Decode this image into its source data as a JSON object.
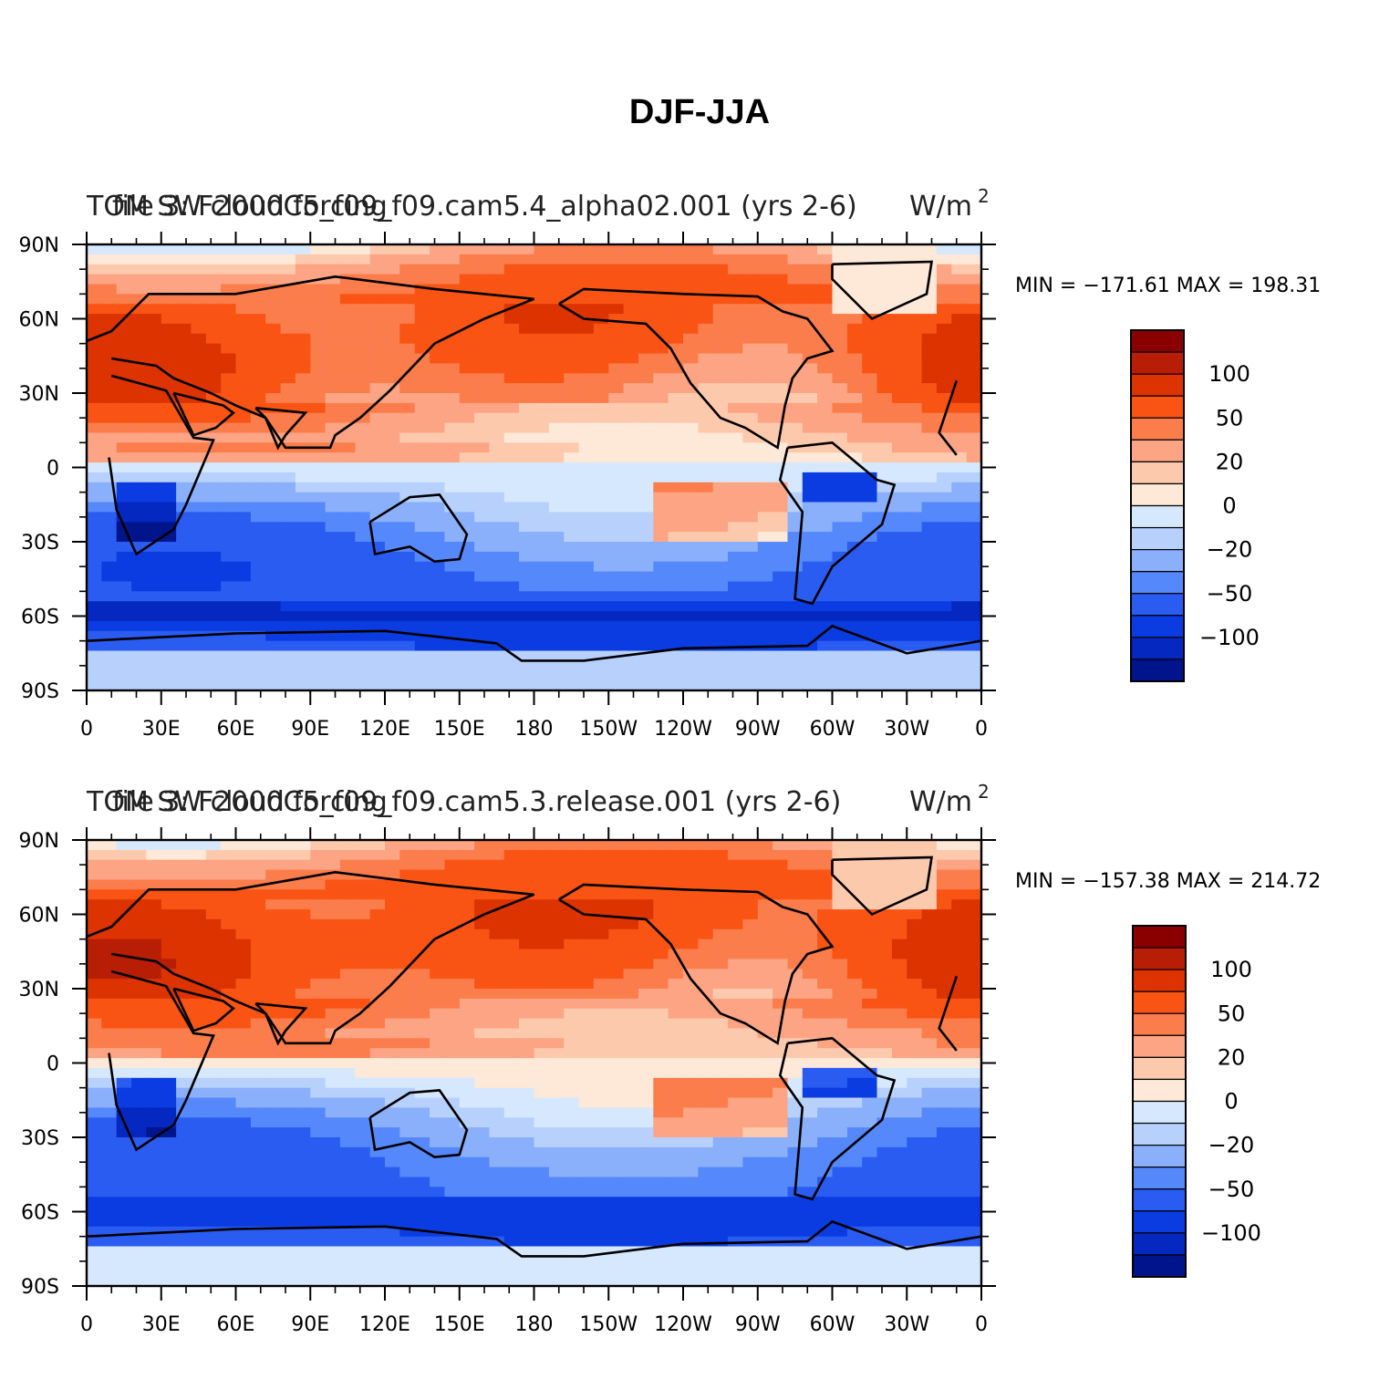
{
  "figure": {
    "title": "DJF-JJA"
  },
  "chart_data": [
    {
      "type": "heatmap",
      "title_left": "file 3: F2000C5_f09_f09.cam5.4_alpha02.001 (yrs 2-6)",
      "title_left_overlay": "TOM SW cloud forcing",
      "title_units": "W/m",
      "title_units_sup": "2",
      "stats": "MIN = −171.61  MAX = 198.31",
      "min": -171.61,
      "max": 198.31,
      "x_tick_labels": [
        "0",
        "30E",
        "60E",
        "90E",
        "120E",
        "150E",
        "180",
        "150W",
        "120W",
        "90W",
        "60W",
        "30W",
        "0"
      ],
      "x_ticks_lon": [
        0,
        30,
        60,
        90,
        120,
        150,
        180,
        210,
        240,
        270,
        300,
        330,
        360
      ],
      "y_tick_labels": [
        "90N",
        "60N",
        "30N",
        "0",
        "30S",
        "60S",
        "90S"
      ],
      "y_ticks_lat": [
        90,
        60,
        30,
        0,
        -30,
        -60,
        -90
      ],
      "xlim": [
        0,
        360
      ],
      "ylim": [
        -90,
        90
      ],
      "colorbar": {
        "colors": [
          "#8a0000",
          "#b81e06",
          "#dc3300",
          "#f95414",
          "#fb7d4c",
          "#fca483",
          "#fdc9ad",
          "#fee8d8",
          "#d5e8fd",
          "#b7d1fc",
          "#8ab0fb",
          "#5588fa",
          "#2a5cf2",
          "#0a3ce2",
          "#0428c0",
          "#00148c"
        ],
        "labels": [
          {
            "text": "100",
            "boundary": 2
          },
          {
            "text": "50",
            "boundary": 4
          },
          {
            "text": "20",
            "boundary": 6
          },
          {
            "text": "0",
            "boundary": 8
          },
          {
            "text": "−20",
            "boundary": 10
          },
          {
            "text": "−50",
            "boundary": 12
          },
          {
            "text": "−100",
            "boundary": 14
          }
        ]
      }
    },
    {
      "type": "heatmap",
      "title_left": "file 3: F2000C5_f09_f09.cam5.3.release.001 (yrs 2-6)",
      "title_left_overlay": "TOM SW cloud forcing",
      "title_units": "W/m",
      "title_units_sup": "2",
      "stats": "MIN = −157.38  MAX = 214.72",
      "min": -157.38,
      "max": 214.72,
      "x_tick_labels": [
        "0",
        "30E",
        "60E",
        "90E",
        "120E",
        "150E",
        "180",
        "150W",
        "120W",
        "90W",
        "60W",
        "30W",
        "0"
      ],
      "x_ticks_lon": [
        0,
        30,
        60,
        90,
        120,
        150,
        180,
        210,
        240,
        270,
        300,
        330,
        360
      ],
      "y_tick_labels": [
        "90N",
        "60N",
        "30N",
        "0",
        "30S",
        "60S",
        "90S"
      ],
      "y_ticks_lat": [
        90,
        60,
        30,
        0,
        -30,
        -60,
        -90
      ],
      "xlim": [
        0,
        360
      ],
      "ylim": [
        -90,
        90
      ],
      "colorbar": {
        "colors": [
          "#8a0000",
          "#b81e06",
          "#dc3300",
          "#f95414",
          "#fb7d4c",
          "#fca483",
          "#fdc9ad",
          "#fee8d8",
          "#d5e8fd",
          "#b7d1fc",
          "#8ab0fb",
          "#5588fa",
          "#2a5cf2",
          "#0a3ce2",
          "#0428c0",
          "#00148c"
        ],
        "labels": [
          {
            "text": "100",
            "boundary": 2
          },
          {
            "text": "50",
            "boundary": 4
          },
          {
            "text": "20",
            "boundary": 6
          },
          {
            "text": "0",
            "boundary": 8
          },
          {
            "text": "−20",
            "boundary": 10
          },
          {
            "text": "−50",
            "boundary": 12
          },
          {
            "text": "−100",
            "boundary": 14
          }
        ]
      }
    }
  ]
}
